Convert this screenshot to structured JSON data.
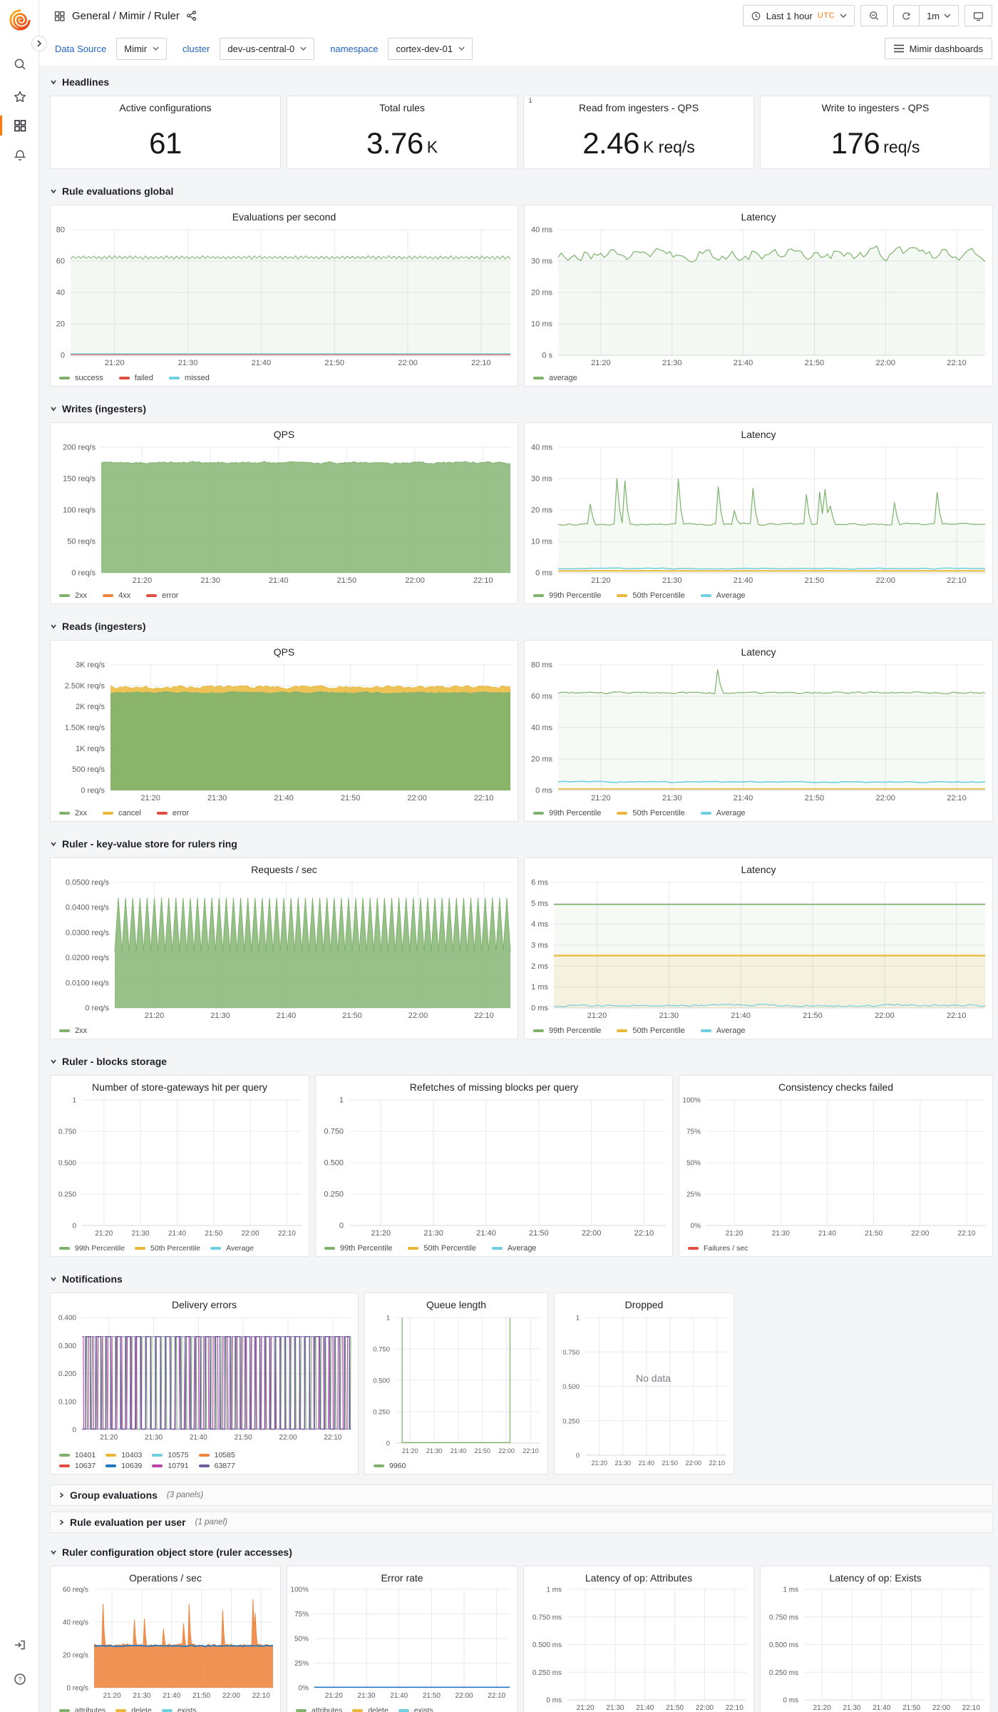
{
  "topbar": {
    "title": "General / Mimir / Ruler",
    "time_label": "Last 1 hour",
    "time_zone": "UTC",
    "interval": "1m"
  },
  "subbar": {
    "dashboards_button": "Mimir dashboards"
  },
  "variables": [
    {
      "label": "Data Source",
      "value": "Mimir"
    },
    {
      "label": "cluster",
      "value": "dev-us-central-0"
    },
    {
      "label": "namespace",
      "value": "cortex-dev-01"
    }
  ],
  "colors": {
    "green": "#7EB26D",
    "yellow": "#EAB839",
    "cyan": "#6ED0E0",
    "orange": "#EF843C",
    "red": "#E24D42",
    "blue": "#1F78C1",
    "magenta": "#BA43A9",
    "violet": "#705DA0",
    "accent": "#FF780A",
    "link": "#1F62C2"
  },
  "x_ticks": [
    "21:20",
    "21:30",
    "21:40",
    "21:50",
    "22:00",
    "22:10"
  ],
  "no_data_text": "No data",
  "sections": [
    {
      "title": "Headlines"
    },
    {
      "title": "Rule evaluations global"
    },
    {
      "title": "Writes (ingesters)"
    },
    {
      "title": "Reads (ingesters)"
    },
    {
      "title": "Ruler - key-value store for rulers ring"
    },
    {
      "title": "Ruler - blocks storage"
    },
    {
      "title": "Notifications"
    },
    {
      "title": "Group evaluations",
      "count": "(3 panels)",
      "collapsed": true
    },
    {
      "title": "Rule evaluation per user",
      "count": "(1 panel)",
      "collapsed": true
    },
    {
      "title": "Ruler configuration object store (ruler accesses)"
    }
  ],
  "stats": [
    {
      "title": "Active configurations",
      "value": "61",
      "unit": ""
    },
    {
      "title": "Total rules",
      "value": "3.76",
      "unit": "K"
    },
    {
      "title": "Read from ingesters - QPS",
      "value": "2.46",
      "unit": "K req/s",
      "info": true
    },
    {
      "title": "Write to ingesters - QPS",
      "value": "176",
      "unit": "req/s"
    }
  ],
  "panels": {
    "evals_qps": {
      "title": "Evaluations per second",
      "y_ticks": [
        "0",
        "20",
        "40",
        "60",
        "80"
      ],
      "legend": [
        {
          "label": "success",
          "color": "#7EB26D"
        },
        {
          "label": "failed",
          "color": "#E24D42"
        },
        {
          "label": "missed",
          "color": "#6ED0E0"
        }
      ],
      "series": [
        {
          "shape": "zigzag",
          "base": 0.775,
          "amp": 0.014,
          "n": 170,
          "seed": 2,
          "color": "#7EB26D",
          "fill": 0.09,
          "w": 1
        },
        {
          "shape": "flat",
          "base": 0.004,
          "color": "#E24D42",
          "w": 1
        },
        {
          "shape": "flat",
          "base": 0.012,
          "color": "#6ED0E0",
          "w": 1.4
        }
      ]
    },
    "evals_lat": {
      "title": "Latency",
      "y_ticks": [
        "0 s",
        "10 ms",
        "20 ms",
        "30 ms",
        "40 ms"
      ],
      "legend": [
        {
          "label": "average",
          "color": "#7EB26D"
        }
      ],
      "series": [
        {
          "shape": "noisy",
          "base": 0.81,
          "amp": 0.09,
          "n": 130,
          "seed": 7,
          "color": "#7EB26D",
          "fill": 0.08,
          "w": 1.2
        }
      ]
    },
    "writes_qps": {
      "title": "QPS",
      "y_ticks": [
        "0 req/s",
        "50 req/s",
        "100 req/s",
        "150 req/s",
        "200 req/s"
      ],
      "legend": [
        {
          "label": "2xx",
          "color": "#7EB26D"
        },
        {
          "label": "4xx",
          "color": "#EF843C"
        },
        {
          "label": "error",
          "color": "#E24D42"
        }
      ],
      "series": [
        {
          "shape": "noisy",
          "base": 0.877,
          "amp": 0.014,
          "n": 210,
          "seed": 3,
          "color": "#7EB26D",
          "fill": 0.8,
          "w": 1
        }
      ]
    },
    "writes_lat": {
      "title": "Latency",
      "y_ticks": [
        "0 ms",
        "10 ms",
        "20 ms",
        "30 ms",
        "40 ms"
      ],
      "legend": [
        {
          "label": "99th Percentile",
          "color": "#7EB26D"
        },
        {
          "label": "50th Percentile",
          "color": "#EAB839"
        },
        {
          "label": "Average",
          "color": "#6ED0E0"
        }
      ],
      "series": [
        {
          "shape": "spiky",
          "base": 0.387,
          "amp": 0.012,
          "n": 160,
          "seed": 11,
          "spikes": {
            "count": 14,
            "min": 0.47,
            "max": 0.8
          },
          "color": "#7EB26D",
          "fill": 0.07,
          "w": 1.2
        },
        {
          "shape": "flat",
          "base": 0.016,
          "color": "#EAB839",
          "w": 2
        },
        {
          "shape": "noisy",
          "base": 0.034,
          "amp": 0.006,
          "n": 110,
          "seed": 5,
          "color": "#6ED0E0",
          "w": 1.5
        }
      ]
    },
    "reads_qps": {
      "title": "QPS",
      "y_ticks": [
        "0 req/s",
        "500 req/s",
        "1K req/s",
        "1.50K req/s",
        "2K req/s",
        "2.50K req/s",
        "3K req/s"
      ],
      "legend": [
        {
          "label": "2xx",
          "color": "#7EB26D"
        },
        {
          "label": "cancel",
          "color": "#EAB839"
        },
        {
          "label": "error",
          "color": "#E24D42"
        }
      ],
      "series": [
        {
          "shape": "noisy",
          "base": 0.822,
          "amp": 0.02,
          "n": 170,
          "seed": 21,
          "color": "#EAB839",
          "fill": 0.85,
          "w": 1
        },
        {
          "shape": "noisy",
          "base": 0.778,
          "amp": 0.012,
          "n": 170,
          "seed": 22,
          "color": "#7EB26D",
          "fill": 0.9,
          "w": 1
        }
      ]
    },
    "reads_lat": {
      "title": "Latency",
      "y_ticks": [
        "0 ms",
        "20 ms",
        "40 ms",
        "60 ms",
        "80 ms"
      ],
      "legend": [
        {
          "label": "99th Percentile",
          "color": "#7EB26D"
        },
        {
          "label": "50th Percentile",
          "color": "#EAB839"
        },
        {
          "label": "Average",
          "color": "#6ED0E0"
        }
      ],
      "series": [
        {
          "shape": "spiky",
          "base": 0.778,
          "amp": 0.014,
          "n": 150,
          "seed": 31,
          "spikes": {
            "at": [
              0.37
            ],
            "min": 0.96,
            "max": 0.97
          },
          "color": "#7EB26D",
          "fill": 0.07,
          "w": 1.2
        },
        {
          "shape": "flat",
          "base": 0.012,
          "color": "#EAB839",
          "w": 1.6
        },
        {
          "shape": "noisy",
          "base": 0.068,
          "amp": 0.007,
          "n": 130,
          "seed": 33,
          "color": "#6ED0E0",
          "w": 1.6
        }
      ]
    },
    "kv_req": {
      "title": "Requests / sec",
      "y_ticks": [
        "0 req/s",
        "0.0100 req/s",
        "0.0200 req/s",
        "0.0300 req/s",
        "0.0400 req/s",
        "0.0500 req/s"
      ],
      "legend": [
        {
          "label": "2xx",
          "color": "#7EB26D"
        }
      ],
      "series": [
        {
          "shape": "triangle",
          "min": 0.45,
          "max": 0.875,
          "cycles": 55,
          "color": "#7EB26D",
          "fill": 0.8,
          "w": 1
        }
      ]
    },
    "kv_lat": {
      "title": "Latency",
      "y_ticks": [
        "0 ms",
        "1 ms",
        "2 ms",
        "3 ms",
        "4 ms",
        "5 ms",
        "6 ms"
      ],
      "legend": [
        {
          "label": "99th Percentile",
          "color": "#7EB26D"
        },
        {
          "label": "50th Percentile",
          "color": "#EAB839"
        },
        {
          "label": "Average",
          "color": "#6ED0E0"
        }
      ],
      "series": [
        {
          "shape": "flat",
          "base": 0.825,
          "color": "#7EB26D",
          "fill": 0.07,
          "w": 1.6
        },
        {
          "shape": "flat",
          "base": 0.417,
          "color": "#EAB839",
          "fill": 0.12,
          "w": 2.2
        },
        {
          "shape": "noisy",
          "base": 0.02,
          "amp": 0.014,
          "n": 140,
          "seed": 41,
          "color": "#6ED0E0",
          "w": 1.2
        }
      ]
    },
    "blocks_hit": {
      "title": "Number of store-gateways hit per query",
      "y_ticks": [
        "0",
        "0.250",
        "0.500",
        "0.750",
        "1"
      ],
      "legend": [
        {
          "label": "99th Percentile",
          "color": "#7EB26D"
        },
        {
          "label": "50th Percentile",
          "color": "#EAB839"
        },
        {
          "label": "Average",
          "color": "#6ED0E0"
        }
      ],
      "series": []
    },
    "blocks_refetch": {
      "title": "Refetches of missing blocks per query",
      "y_ticks": [
        "0",
        "0.250",
        "0.500",
        "0.750",
        "1"
      ],
      "legend": [
        {
          "label": "99th Percentile",
          "color": "#7EB26D"
        },
        {
          "label": "50th Percentile",
          "color": "#EAB839"
        },
        {
          "label": "Average",
          "color": "#6ED0E0"
        }
      ],
      "series": []
    },
    "blocks_consistency": {
      "title": "Consistency checks failed",
      "y_ticks": [
        "0%",
        "25%",
        "50%",
        "75%",
        "100%"
      ],
      "legend": [
        {
          "label": "Failures / sec",
          "color": "#E24D42"
        }
      ],
      "series": []
    },
    "notif_errors": {
      "title": "Delivery errors",
      "y_ticks": [
        "0",
        "0.100",
        "0.200",
        "0.300",
        "0.400"
      ],
      "legend": [
        {
          "label": "10401",
          "color": "#7EB26D"
        },
        {
          "label": "10403",
          "color": "#EAB839"
        },
        {
          "label": "10575",
          "color": "#6ED0E0"
        },
        {
          "label": "10585",
          "color": "#EF843C"
        },
        {
          "label": "10637",
          "color": "#E24D42"
        },
        {
          "label": "10639",
          "color": "#1F78C1"
        },
        {
          "label": "10791",
          "color": "#BA43A9"
        },
        {
          "label": "63877",
          "color": "#705DA0"
        }
      ],
      "legend_rows": 2,
      "series": [
        {
          "shape": "square",
          "high": 0.83,
          "cycles": 27,
          "phase": 0.0,
          "color": "#7EB26D",
          "w": 1.1
        },
        {
          "shape": "square",
          "high": 0.83,
          "cycles": 28,
          "phase": 0.33,
          "color": "#BA43A9",
          "w": 1.1
        },
        {
          "shape": "square",
          "high": 0.83,
          "cycles": 27,
          "phase": 0.15,
          "color": "#9b9bc0",
          "w": 1.0
        },
        {
          "shape": "square",
          "high": 0.83,
          "cycles": 27,
          "phase": 0.6,
          "color": "#705DA0",
          "w": 1.4
        }
      ]
    },
    "notif_queue": {
      "title": "Queue length",
      "y_ticks": [
        "0",
        "0.250",
        "0.500",
        "0.750",
        "1"
      ],
      "legend": [
        {
          "label": "9960",
          "color": "#7EB26D"
        }
      ],
      "series": [
        {
          "shape": "gate",
          "x0": 0.045,
          "x1": 0.79,
          "color": "#7EB26D",
          "w": 1.3
        }
      ]
    },
    "notif_dropped": {
      "title": "Dropped",
      "y_ticks": [
        "0",
        "0.250",
        "0.500",
        "0.750",
        "1"
      ],
      "legend": [],
      "no_data": true,
      "series": []
    },
    "ops_sec": {
      "title": "Operations / sec",
      "y_ticks": [
        "0 req/s",
        "20 req/s",
        "40 req/s",
        "60 req/s"
      ],
      "legend": [
        {
          "label": "attributes",
          "color": "#7EB26D"
        },
        {
          "label": "delete",
          "color": "#EAB839"
        },
        {
          "label": "exists",
          "color": "#6ED0E0"
        }
      ],
      "series": [
        {
          "shape": "spiky",
          "base": 0.43,
          "amp": 0.024,
          "n": 160,
          "seed": 51,
          "spikes": {
            "count": 9,
            "min": 0.58,
            "max": 0.93
          },
          "color": "#EF843C",
          "fill": 0.88,
          "w": 1
        },
        {
          "shape": "noisy",
          "base": 0.425,
          "amp": 0.008,
          "n": 160,
          "seed": 52,
          "color": "#1F78C1",
          "w": 1.8
        }
      ]
    },
    "ops_err": {
      "title": "Error rate",
      "y_ticks": [
        "0%",
        "25%",
        "50%",
        "75%",
        "100%"
      ],
      "legend": [
        {
          "label": "attributes",
          "color": "#7EB26D"
        },
        {
          "label": "delete",
          "color": "#EAB839"
        },
        {
          "label": "exists",
          "color": "#6ED0E0"
        }
      ],
      "series": [
        {
          "shape": "flat",
          "base": 0.006,
          "color": "#1F78C1",
          "w": 1.5
        }
      ]
    },
    "ops_lat_attr": {
      "title": "Latency of op: Attributes",
      "y_ticks": [
        "0 ms",
        "0.250 ms",
        "0.500 ms",
        "0.750 ms",
        "1 ms"
      ],
      "legend": [],
      "series": []
    },
    "ops_lat_exists": {
      "title": "Latency of op: Exists",
      "y_ticks": [
        "0 ms",
        "0.250 ms",
        "0.500 ms",
        "0.750 ms",
        "1 ms"
      ],
      "legend": [],
      "series": []
    }
  }
}
